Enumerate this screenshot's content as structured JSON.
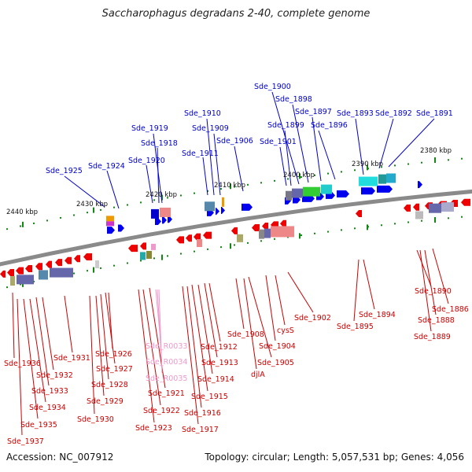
{
  "title": "Saccharophagus degradans 2-40, complete genome",
  "accession": "Accession: NC_007912",
  "topology": "Topology: circular; Length: 5,057,531 bp; Genes: 4,056",
  "colors": {
    "forward_label": "#0000cc",
    "reverse_label": "#cc0000",
    "rna_label": "#ee99cc",
    "forward_gene": "#0000ee",
    "reverse_gene": "#ee0000",
    "backbone": "#888888",
    "tick": "#118811"
  },
  "kbp_labels": [
    "2440 kbp",
    "2430 kbp",
    "2420 kbp",
    "2410 kbp",
    "2400 kbp",
    "2390 kbp",
    "2380 kbp"
  ],
  "forward_labels": [
    "Sde_1925",
    "Sde_1924",
    "Sde_1920",
    "Sde_1918",
    "Sde_1919",
    "Sde_1911",
    "Sde_1910",
    "Sde_1909",
    "Sde_1906",
    "Sde_1901",
    "Sde_1899",
    "Sde_1900",
    "Sde_1898",
    "Sde_1897",
    "Sde_1896",
    "Sde_1893",
    "Sde_1892",
    "Sde_1891"
  ],
  "reverse_labels": [
    "Sde_1936",
    "Sde_1937",
    "Sde_1935",
    "Sde_1934",
    "Sde_1933",
    "Sde_1932",
    "Sde_1931",
    "Sde_1930",
    "Sde_1929",
    "Sde_1928",
    "Sde_1927",
    "Sde_1926",
    "Sde_1923",
    "Sde_1922",
    "Sde_1921",
    "Sde_1917",
    "Sde_1916",
    "Sde_1915",
    "Sde_1914",
    "Sde_1913",
    "Sde_1912",
    "Sde_1908",
    "djlA",
    "Sde_1905",
    "Sde_1904",
    "cysS",
    "Sde_1902",
    "Sde_1895",
    "Sde_1894",
    "Sde_1889",
    "Sde_1888",
    "Sde_1890",
    "Sde_1886"
  ],
  "rna_labels": [
    "Sde_R0033",
    "Sde_R0034",
    "Sde_R0035"
  ]
}
